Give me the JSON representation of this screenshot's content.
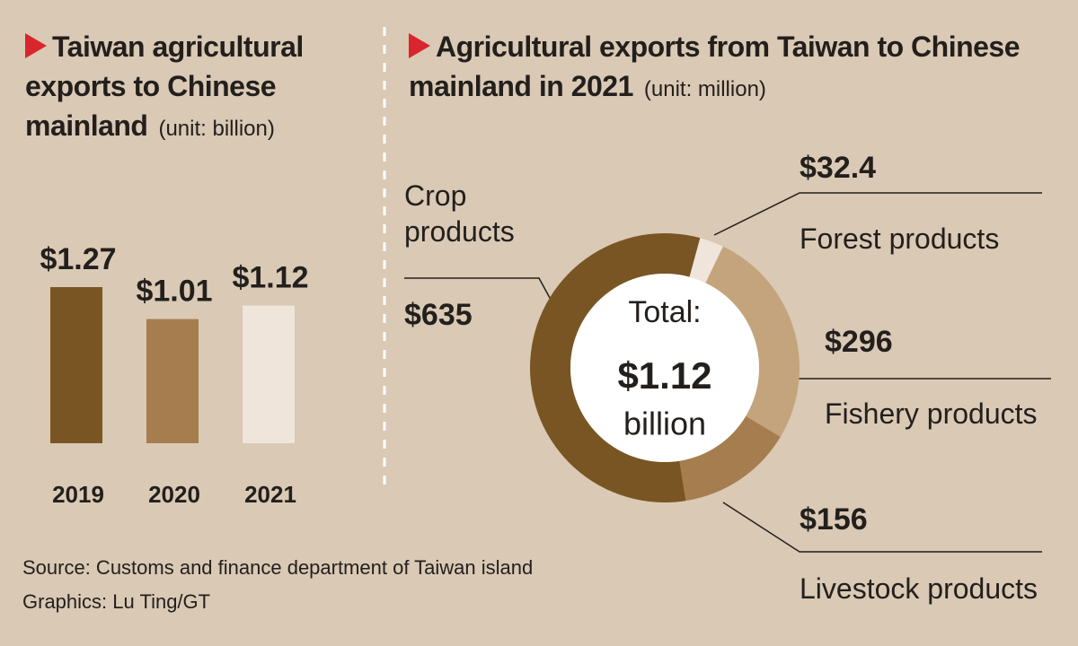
{
  "chart_data": [
    {
      "type": "bar",
      "title": "Taiwan agricultural exports to Chinese mainland",
      "unit": "(unit: billion)",
      "categories": [
        "2019",
        "2020",
        "2021"
      ],
      "values": [
        1.27,
        1.01,
        1.12
      ],
      "value_labels": [
        "$1.27",
        "$1.01",
        "$1.12"
      ],
      "colors": [
        "#7a5524",
        "#a57d4f",
        "#efe5da"
      ]
    },
    {
      "type": "pie",
      "title": "Agricultural exports from Taiwan to Chinese mainland in 2021",
      "unit": "(unit: million)",
      "categories": [
        "Crop products",
        "Forest products",
        "Fishery products",
        "Livestock products"
      ],
      "values": [
        635,
        32.4,
        296,
        156
      ],
      "value_labels": [
        "$635",
        "$32.4",
        "$296",
        "$156"
      ],
      "colors": [
        "#7a5524",
        "#efe5da",
        "#c4a47c",
        "#a57d4f"
      ],
      "center_text": [
        "Total:",
        "$1.12",
        "billion"
      ]
    }
  ],
  "source": "Source: Customs and finance department of Taiwan island",
  "credit": "Graphics: Lu Ting/GT"
}
